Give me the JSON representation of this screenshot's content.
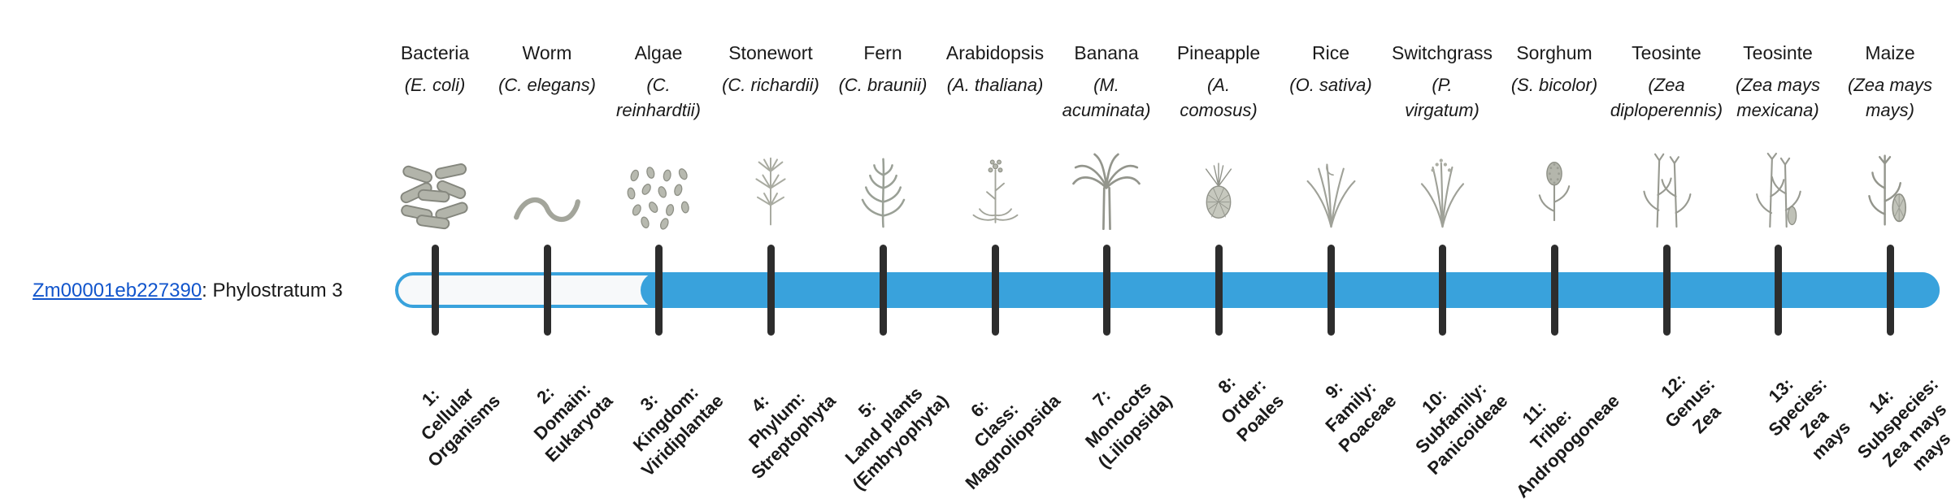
{
  "gene": {
    "id": "Zm00001eb227390",
    "label_suffix": ": Phylostratum 3",
    "phylostratum": 3
  },
  "colors": {
    "bar": "#39a2dc",
    "bar_track": "#f7f9fa",
    "tick": "#2d2d2d",
    "link": "#1155cc",
    "text": "#1a1a1a"
  },
  "chart_data": {
    "type": "table",
    "title": "Gene phylostratigraphy bar",
    "gene": "Zm00001eb227390",
    "assigned_phylostratum": 3,
    "fill_start_stratum": 3,
    "fill_end_stratum": 14,
    "strata": [
      {
        "n": 1,
        "label": "1: Cellular Organisms",
        "organism": "Bacteria",
        "scientific": "E. coli"
      },
      {
        "n": 2,
        "label": "2: Domain: Eukaryota",
        "organism": "Worm",
        "scientific": "C. elegans"
      },
      {
        "n": 3,
        "label": "3: Kingdom: Viridiplantae",
        "organism": "Algae",
        "scientific": "C. reinhardtii"
      },
      {
        "n": 4,
        "label": "4: Phylum: Streptophyta",
        "organism": "Stonewort",
        "scientific": "C. richardii"
      },
      {
        "n": 5,
        "label": "5: Land plants (Embryophyta)",
        "organism": "Fern",
        "scientific": "C. braunii"
      },
      {
        "n": 6,
        "label": "6: Class: Magnoliopsida",
        "organism": "Arabidopsis",
        "scientific": "A. thaliana"
      },
      {
        "n": 7,
        "label": "7: Monocots (Liliopsida)",
        "organism": "Banana",
        "scientific": "M. acuminata"
      },
      {
        "n": 8,
        "label": "8: Order: Poales",
        "organism": "Pineapple",
        "scientific": "A. comosus"
      },
      {
        "n": 9,
        "label": "9: Family: Poaceae",
        "organism": "Rice",
        "scientific": "O. sativa"
      },
      {
        "n": 10,
        "label": "10: Subfamily: Panicoideae",
        "organism": "Switchgrass",
        "scientific": "P. virgatum"
      },
      {
        "n": 11,
        "label": "11: Tribe: Andropogoneae",
        "organism": "Sorghum",
        "scientific": "S. bicolor"
      },
      {
        "n": 12,
        "label": "12: Genus: Zea",
        "organism": "Teosinte",
        "scientific": "Zea diploperennis"
      },
      {
        "n": 13,
        "label": "13: Species: Zea mays",
        "organism": "Teosinte",
        "scientific": "Zea mays mexicana"
      },
      {
        "n": 14,
        "label": "14: Subspecies: Zea mays mays",
        "organism": "Maize",
        "scientific": "Zea mays mays"
      }
    ]
  },
  "organisms": [
    {
      "name": "Bacteria",
      "sci": "(E. coli)",
      "icon": "bacteria-icon",
      "axis": "1:\nCellular\nOrganisms"
    },
    {
      "name": "Worm",
      "sci": "(C. elegans)",
      "icon": "worm-icon",
      "axis": "2:\nDomain:\nEukaryota"
    },
    {
      "name": "Algae",
      "sci": "(C.\nreinhardtii)",
      "icon": "algae-icon",
      "axis": "3:\nKingdom:\nViridiplantae"
    },
    {
      "name": "Stonewort",
      "sci": "(C. richardii)",
      "icon": "stonewort-icon",
      "axis": "4:\nPhylum:\nStreptophyta"
    },
    {
      "name": "Fern",
      "sci": "(C. braunii)",
      "icon": "fern-icon",
      "axis": "5:\nLand plants\n(Embryophyta)"
    },
    {
      "name": "Arabidopsis",
      "sci": "(A. thaliana)",
      "icon": "arabidopsis-icon",
      "axis": "6:\nClass:\nMagnoliopsida"
    },
    {
      "name": "Banana",
      "sci": "(M.\nacuminata)",
      "icon": "banana-icon",
      "axis": "7:\nMonocots\n(Liliopsida)"
    },
    {
      "name": "Pineapple",
      "sci": "(A.\ncomosus)",
      "icon": "pineapple-icon",
      "axis": "8:\nOrder:\nPoales"
    },
    {
      "name": "Rice",
      "sci": "(O. sativa)",
      "icon": "rice-icon",
      "axis": "9:\nFamily:\nPoaceae"
    },
    {
      "name": "Switchgrass",
      "sci": "(P.\nvirgatum)",
      "icon": "switchgrass-icon",
      "axis": "10:\nSubfamily:\nPanicoideae"
    },
    {
      "name": "Sorghum",
      "sci": "(S. bicolor)",
      "icon": "sorghum-icon",
      "axis": "11:\nTribe:\nAndropogoneae"
    },
    {
      "name": "Teosinte",
      "sci": "(Zea\ndiploperennis)",
      "icon": "teosinte-diploperennis-icon",
      "axis": "12:\nGenus:\nZea"
    },
    {
      "name": "Teosinte",
      "sci": "(Zea mays\nmexicana)",
      "icon": "teosinte-mexicana-icon",
      "axis": "13:\nSpecies:\nZea\nmays"
    },
    {
      "name": "Maize",
      "sci": "(Zea mays\nmays)",
      "icon": "maize-icon",
      "axis": "14:\nSubspecies:\nZea mays\nmays"
    }
  ]
}
